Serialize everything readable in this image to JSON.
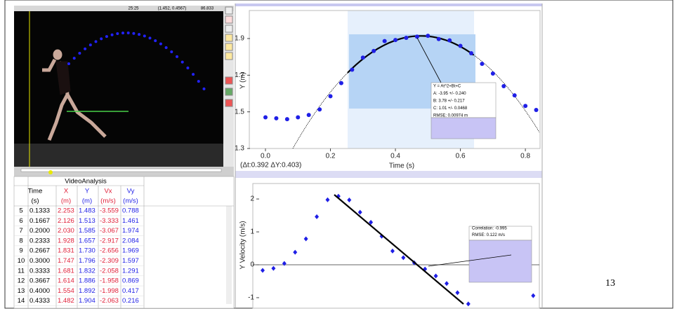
{
  "video": {
    "status": [
      "25:25",
      "(1.452, 0.4567)",
      "86.833"
    ]
  },
  "table": {
    "title": "VideoAnalysis",
    "columns": [
      {
        "name": "Time",
        "unit": "(s)"
      },
      {
        "name": "X",
        "unit": "(m)"
      },
      {
        "name": "Y",
        "unit": "(m)"
      },
      {
        "name": "Vx",
        "unit": "(m/s)"
      },
      {
        "name": "Vy",
        "unit": "(m/s)"
      }
    ],
    "rows": [
      [
        "5",
        "0.1333",
        "2.253",
        "1.483",
        "-3.559",
        "0.788"
      ],
      [
        "6",
        "0.1667",
        "2.126",
        "1.513",
        "-3.333",
        "1.461"
      ],
      [
        "7",
        "0.2000",
        "2.030",
        "1.585",
        "-3.067",
        "1.974"
      ],
      [
        "8",
        "0.2333",
        "1.928",
        "1.657",
        "-2.917",
        "2.084"
      ],
      [
        "9",
        "0.2667",
        "1.831",
        "1.730",
        "-2.656",
        "1.969"
      ],
      [
        "10",
        "0.3000",
        "1.747",
        "1.796",
        "-2.309",
        "1.597"
      ],
      [
        "11",
        "0.3333",
        "1.681",
        "1.832",
        "-2.058",
        "1.291"
      ],
      [
        "12",
        "0.3667",
        "1.614",
        "1.886",
        "-1.958",
        "0.869"
      ],
      [
        "13",
        "0.4000",
        "1.554",
        "1.892",
        "-1.998",
        "0.417"
      ],
      [
        "14",
        "0.4333",
        "1.482",
        "1.904",
        "-2.063",
        "0.216"
      ]
    ]
  },
  "chart_data": [
    {
      "type": "scatter",
      "xlabel": "Time (s)",
      "ylabel": "Y (m)",
      "selection": "(Δt:0.392 ΔY:0.403)",
      "x": [
        0,
        0.0333,
        0.0667,
        0.1,
        0.1333,
        0.1667,
        0.2,
        0.2333,
        0.2667,
        0.3,
        0.3333,
        0.3667,
        0.4,
        0.4333,
        0.4667,
        0.5,
        0.5333,
        0.5667,
        0.6,
        0.6333,
        0.6667,
        0.7,
        0.7333,
        0.7667,
        0.8,
        0.8333
      ],
      "values": [
        1.47,
        1.465,
        1.46,
        1.47,
        1.483,
        1.513,
        1.585,
        1.657,
        1.73,
        1.796,
        1.832,
        1.886,
        1.892,
        1.904,
        1.91,
        1.915,
        1.897,
        1.89,
        1.86,
        1.82,
        1.762,
        1.709,
        1.64,
        1.59,
        1.532,
        1.51
      ],
      "color": "#1f1fe6",
      "fit": {
        "A": -3.95,
        "B": 3.78,
        "C": 1.01
      },
      "annotation": [
        "Y = At^2+Bt+C",
        "A: -3.95 +/- 0.240",
        "B: 3.78 +/- 0.217",
        "C: 1.01 +/- 0.0468",
        "RMSE: 0.00974 m"
      ],
      "xlim": [
        0,
        0.843
      ],
      "ylim": [
        1.3,
        2.03
      ],
      "xticks": [
        {
          "value": 0,
          "label": "0.0"
        },
        0.2,
        0.4,
        0.6,
        0.8
      ],
      "yticks": [
        1.3,
        1.5,
        1.7,
        1.9
      ]
    },
    {
      "type": "scatter",
      "ylabel": "Y Velocity (m/s)",
      "x": [
        0,
        0.0333,
        0.0667,
        0.1,
        0.1333,
        0.1667,
        0.2,
        0.2333,
        0.2667,
        0.3,
        0.3333,
        0.3667,
        0.4,
        0.4333,
        0.4667,
        0.5,
        0.5333,
        0.5667,
        0.6,
        0.6333,
        0.8333
      ],
      "values": [
        -0.17,
        -0.11,
        0.04,
        0.38,
        0.788,
        1.461,
        1.974,
        2.084,
        1.969,
        1.597,
        1.291,
        0.869,
        0.417,
        0.216,
        0.06,
        -0.13,
        -0.34,
        -0.57,
        -0.85,
        -1.19,
        -0.94
      ],
      "color": "#1f1fe6",
      "annotation": [
        "Correlation: -0.995",
        "RMSE: 0.122 m/s"
      ],
      "xlim": [
        0,
        0.85
      ],
      "ylim": [
        -1.32,
        2.47
      ],
      "yticks": [
        2,
        1,
        0,
        -1
      ]
    }
  ],
  "page_number": "13"
}
